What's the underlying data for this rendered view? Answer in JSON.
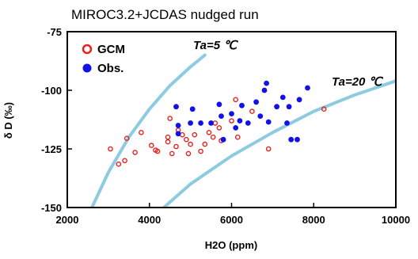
{
  "chart_data": {
    "type": "scatter",
    "title": "MIROC3.2+JCDAS nudged run",
    "xlabel": "H2O (ppm)",
    "ylabel": "δ D (‰)",
    "xlim": [
      2000,
      10000
    ],
    "ylim": [
      -150,
      -75
    ],
    "x_ticks": [
      2000,
      4000,
      6000,
      8000,
      10000
    ],
    "y_ticks": [
      -150,
      -125,
      -100,
      -75
    ],
    "x_tick_labels": [
      "2000",
      "4000",
      "6000",
      "8000",
      "10000"
    ],
    "y_tick_labels": [
      "-150",
      "-125",
      "-100",
      "-75"
    ],
    "grid": false,
    "legend_position": "top-left",
    "series": [
      {
        "name": "GCM",
        "marker": "open-circle",
        "color": "#e8201c",
        "points": [
          [
            3050,
            -125
          ],
          [
            3250,
            -131.5
          ],
          [
            3400,
            -130
          ],
          [
            3450,
            -120.5
          ],
          [
            3650,
            -126.5
          ],
          [
            3800,
            -118
          ],
          [
            4050,
            -123.5
          ],
          [
            4150,
            -125.5
          ],
          [
            4200,
            -126
          ],
          [
            4450,
            -122
          ],
          [
            4450,
            -120
          ],
          [
            4500,
            -112
          ],
          [
            4550,
            -127
          ],
          [
            4650,
            -124
          ],
          [
            4700,
            -117
          ],
          [
            4800,
            -119
          ],
          [
            4900,
            -121
          ],
          [
            4950,
            -127
          ],
          [
            5000,
            -123
          ],
          [
            5100,
            -119
          ],
          [
            5250,
            -126
          ],
          [
            5350,
            -123
          ],
          [
            5450,
            -118
          ],
          [
            5550,
            -120
          ],
          [
            5600,
            -114
          ],
          [
            5700,
            -116
          ],
          [
            5750,
            -121.5
          ],
          [
            6000,
            -113
          ],
          [
            6100,
            -104
          ],
          [
            6150,
            -120
          ],
          [
            6500,
            -109
          ],
          [
            6900,
            -125
          ],
          [
            8250,
            -108
          ]
        ]
      },
      {
        "name": "Obs.",
        "marker": "filled-circle",
        "color": "#1212e8",
        "points": [
          [
            4650,
            -107
          ],
          [
            4700,
            -115
          ],
          [
            4700,
            -118.5
          ],
          [
            5000,
            -114
          ],
          [
            5050,
            -108
          ],
          [
            5250,
            -114
          ],
          [
            5500,
            -114
          ],
          [
            5700,
            -106
          ],
          [
            5750,
            -111
          ],
          [
            5800,
            -121
          ],
          [
            6000,
            -110
          ],
          [
            6100,
            -116
          ],
          [
            6200,
            -113
          ],
          [
            6250,
            -106.5
          ],
          [
            6400,
            -114
          ],
          [
            6600,
            -105
          ],
          [
            6700,
            -111
          ],
          [
            6800,
            -100
          ],
          [
            6850,
            -97
          ],
          [
            6900,
            -113.5
          ],
          [
            7100,
            -107
          ],
          [
            7250,
            -103
          ],
          [
            7350,
            -114
          ],
          [
            7400,
            -107
          ],
          [
            7450,
            -121
          ],
          [
            7600,
            -121
          ],
          [
            7650,
            -104
          ],
          [
            7850,
            -99
          ]
        ]
      }
    ],
    "curves": [
      {
        "label": "Ta=5 ℃",
        "color": "#8ccbe0",
        "points": [
          [
            2600,
            -150
          ],
          [
            3000,
            -135
          ],
          [
            3500,
            -120
          ],
          [
            4000,
            -108
          ],
          [
            4500,
            -98
          ],
          [
            5000,
            -90
          ],
          [
            5350,
            -85
          ]
        ]
      },
      {
        "label": "Ta=20 ℃",
        "color": "#8ccbe0",
        "points": [
          [
            4350,
            -150
          ],
          [
            5000,
            -140
          ],
          [
            6000,
            -128
          ],
          [
            7000,
            -118
          ],
          [
            8000,
            -109
          ],
          [
            9000,
            -102
          ],
          [
            10000,
            -96
          ]
        ]
      }
    ]
  }
}
